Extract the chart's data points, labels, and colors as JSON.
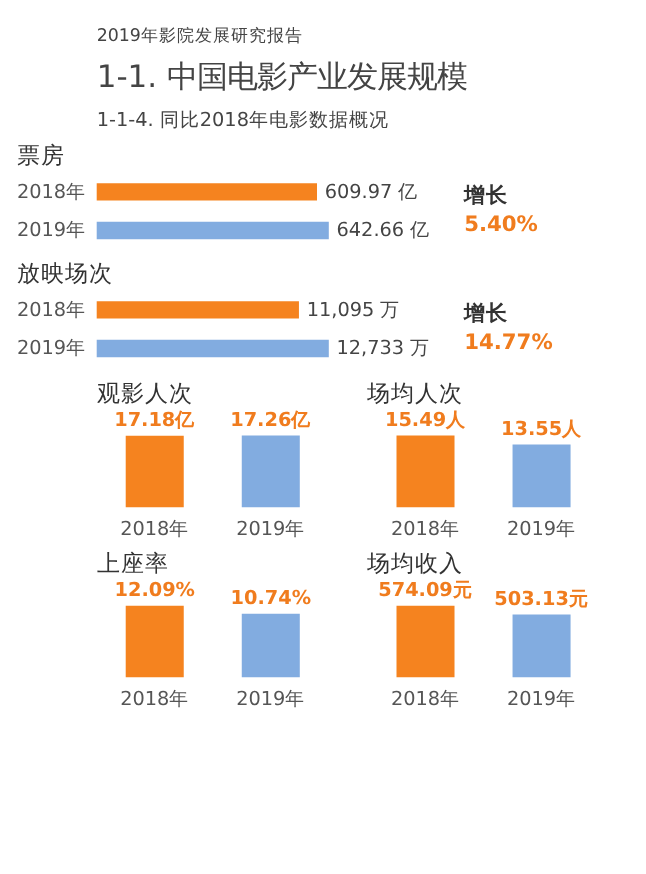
{
  "chart_data": [
    {
      "type": "bar",
      "orientation": "horizontal",
      "title": "票房",
      "categories": [
        "2018年",
        "2019年"
      ],
      "values": [
        609.97,
        642.66
      ],
      "colors": [
        "#f5831f",
        "#82ace0"
      ],
      "value_labels": [
        "609.97 亿",
        "642.66 亿"
      ],
      "tick_labels": "y",
      "annotations": [
        "2019年影院发展研究报告",
        "1-1. 中国电影产业发展规模",
        "1-1-4. 同比2018年电影数据概况",
        "增长",
        "5.40%"
      ]
    },
    {
      "type": "bar",
      "orientation": "horizontal",
      "title": "放映场次",
      "categories": [
        "2018年",
        "2019年"
      ],
      "values": [
        11095,
        12733
      ],
      "colors": [
        "#f5831f",
        "#82ace0"
      ],
      "value_labels": [
        "11,095 万",
        "12,733 万"
      ],
      "tick_labels": "y",
      "annotations": [
        "增长",
        "14.77%"
      ]
    },
    {
      "type": "bar",
      "title": "观影人次",
      "categories": [
        "2018年",
        "2019年"
      ],
      "values": [
        17.18,
        17.26
      ],
      "colors": [
        "#f5831f",
        "#82ace0"
      ],
      "value_labels": [
        "17.18亿",
        "17.26亿"
      ],
      "tick_labels": "x"
    },
    {
      "type": "bar",
      "title": "场均人次",
      "categories": [
        "2018年",
        "2019年"
      ],
      "values": [
        15.49,
        13.55
      ],
      "colors": [
        "#f5831f",
        "#82ace0"
      ],
      "value_labels": [
        "15.49人",
        "13.55人"
      ],
      "tick_labels": "x"
    },
    {
      "type": "bar",
      "title": "上座率",
      "categories": [
        "2018年",
        "2019年"
      ],
      "values": [
        12.09,
        10.74
      ],
      "colors": [
        "#f5831f",
        "#82ace0"
      ],
      "value_labels": [
        "12.09%",
        "10.74%"
      ],
      "tick_labels": "x"
    },
    {
      "type": "bar",
      "title": "场均收入",
      "categories": [
        "2018年",
        "2019年"
      ],
      "values": [
        574.09,
        503.13
      ],
      "colors": [
        "#f5831f",
        "#82ace0"
      ],
      "value_labels": [
        "574.09元",
        "503.13元"
      ],
      "tick_labels": "x"
    }
  ]
}
